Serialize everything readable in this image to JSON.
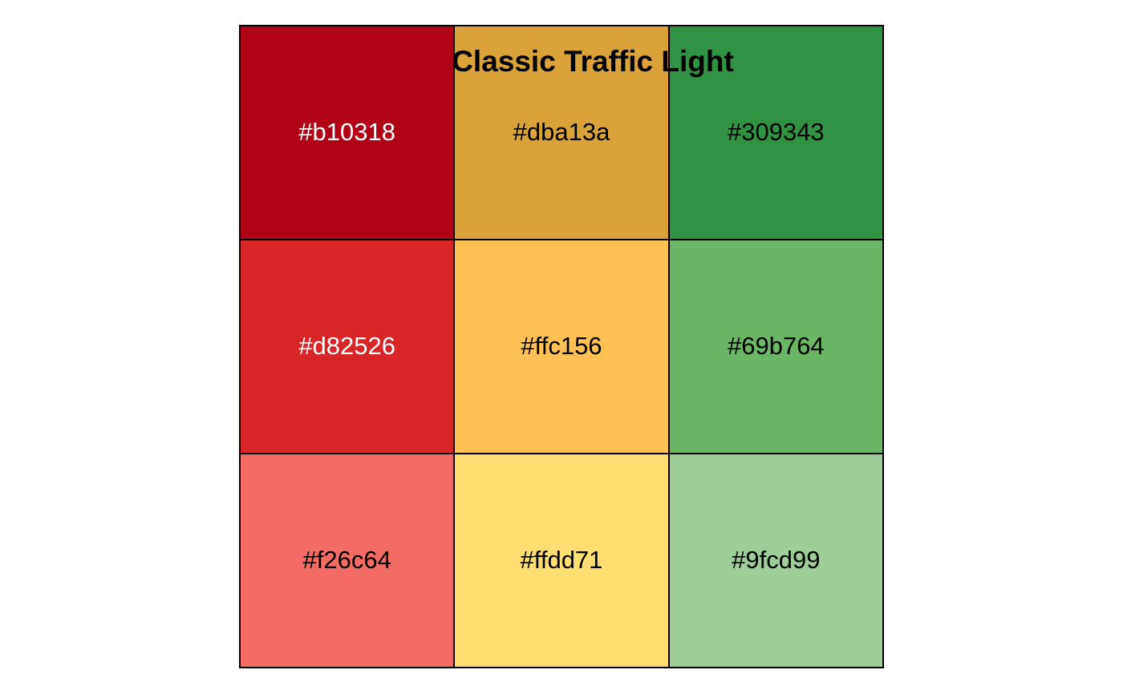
{
  "title": "Classic Traffic Light",
  "swatches": [
    {
      "label": "#b10318",
      "color": "#b10318",
      "text_color": "#ffffff"
    },
    {
      "label": "#dba13a",
      "color": "#dba13a",
      "text_color": "#000000"
    },
    {
      "label": "#309343",
      "color": "#309343",
      "text_color": "#000000"
    },
    {
      "label": "#d82526",
      "color": "#d82526",
      "text_color": "#ffffff"
    },
    {
      "label": "#ffc156",
      "color": "#ffc156",
      "text_color": "#000000"
    },
    {
      "label": "#69b764",
      "color": "#69b764",
      "text_color": "#000000"
    },
    {
      "label": "#f26c64",
      "color": "#f26c64",
      "text_color": "#000000"
    },
    {
      "label": "#ffdd71",
      "color": "#ffdd71",
      "text_color": "#000000"
    },
    {
      "label": "#9fcd99",
      "color": "#9fcd99",
      "text_color": "#000000"
    }
  ]
}
